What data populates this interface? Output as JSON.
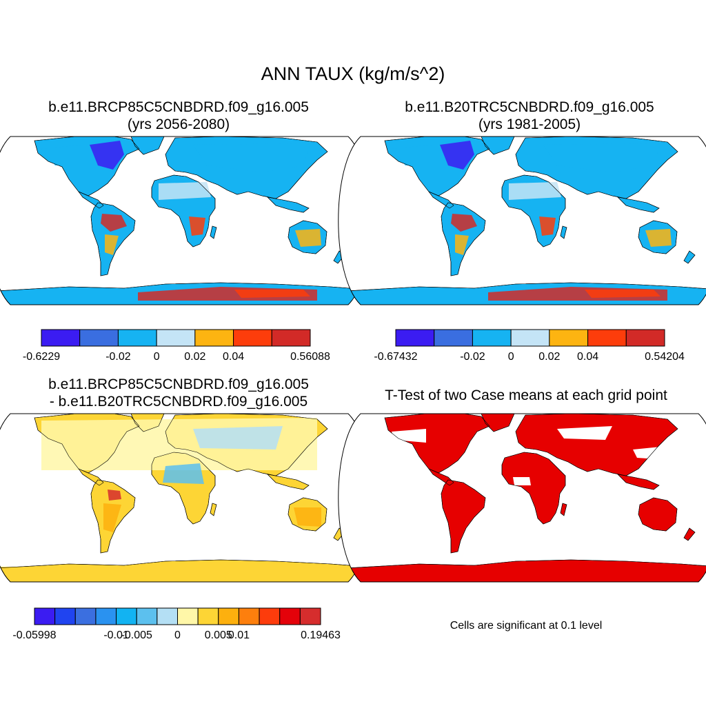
{
  "title": "ANN TAUX (kg/m/s^2)",
  "panels": [
    {
      "id": "case1",
      "title_line1": "b.e11.BRCP85C5CNBDRD.f09_g16.005",
      "title_line2": "(yrs 2056-2080)",
      "colorbar": {
        "colors": [
          "#3b1cf2",
          "#3a6ee0",
          "#16b3f2",
          "#c4e4f6",
          "#fdb411",
          "#fd3d0b",
          "#d22a27"
        ],
        "labels": [
          "-0.6229",
          "-0.02",
          "0",
          "0.02",
          "0.04",
          "0.56088"
        ],
        "label_boundaries": [
          0,
          2,
          3,
          4,
          5,
          7
        ]
      }
    },
    {
      "id": "case2",
      "title_line1": "b.e11.B20TRC5CNBDRD.f09_g16.005",
      "title_line2": "(yrs 1981-2005)",
      "colorbar": {
        "colors": [
          "#3b1cf2",
          "#3a6ee0",
          "#16b3f2",
          "#c4e4f6",
          "#fdb411",
          "#fd3d0b",
          "#d22a27"
        ],
        "labels": [
          "-0.67432",
          "-0.02",
          "0",
          "0.02",
          "0.04",
          "0.54204"
        ],
        "label_boundaries": [
          0,
          2,
          3,
          4,
          5,
          7
        ]
      }
    },
    {
      "id": "diff",
      "title_line1": "b.e11.BRCP85C5CNBDRD.f09_g16.005",
      "title_line2": "- b.e11.B20TRC5CNBDRD.f09_g16.005",
      "colorbar": {
        "colors": [
          "#3b1cf2",
          "#2044f0",
          "#3b6fe0",
          "#2a92f0",
          "#12b3f2",
          "#5cc0ee",
          "#b4dff4",
          "#fff7a8",
          "#fdd535",
          "#fdb00e",
          "#fd7f0d",
          "#fd3c0c",
          "#e4020a",
          "#d62d2d"
        ],
        "labels": [
          "-0.05998",
          "-0.01",
          "-0.005",
          "0",
          "0.005",
          "0.01",
          "0.19463"
        ],
        "label_boundaries": [
          0,
          4,
          5,
          7,
          9,
          10,
          14
        ]
      }
    },
    {
      "id": "ttest",
      "title_line1": "T-Test of two Case means at each grid point",
      "note": "Cells are significant at 0.1 level"
    }
  ],
  "colors": {
    "significant": "#e60000",
    "outline": "#000000"
  }
}
